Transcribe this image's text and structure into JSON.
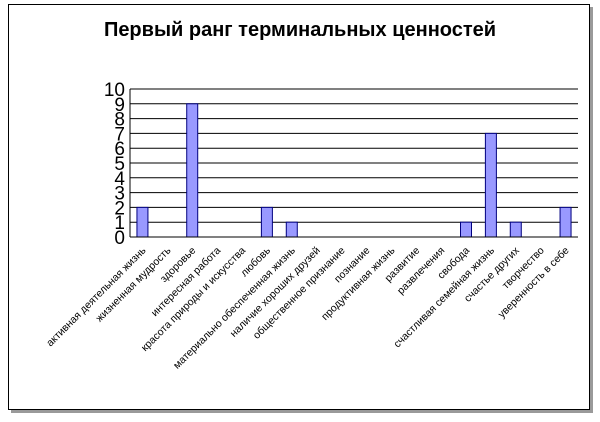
{
  "chart_data": {
    "type": "bar",
    "title": "Первый ранг терминальных ценностей",
    "categories": [
      "активная деятельная жизнь",
      "жизненная мудрость",
      "здоровье",
      "интересная работа",
      "красота природы и искусства",
      "любовь",
      "материально обеспеченная жизнь",
      "наличие хороших друзей",
      "общественное признание",
      "познание",
      "продуктивная жизнь",
      "развитие",
      "развлечения",
      "свобода",
      "счастливая семейная жизнь",
      "счастье других",
      "творчество",
      "уверенность в себе"
    ],
    "values": [
      2,
      0,
      9,
      0,
      0,
      2,
      1,
      0,
      0,
      0,
      0,
      0,
      0,
      1,
      7,
      1,
      0,
      2
    ],
    "ylim": [
      0,
      10
    ],
    "yticks": [
      0,
      1,
      2,
      3,
      4,
      5,
      6,
      7,
      8,
      9,
      10
    ],
    "grid": true,
    "legend": "none",
    "colors": {
      "bar_fill": "#9999ff",
      "bar_stroke": "#000080",
      "grid": "#000000"
    }
  }
}
